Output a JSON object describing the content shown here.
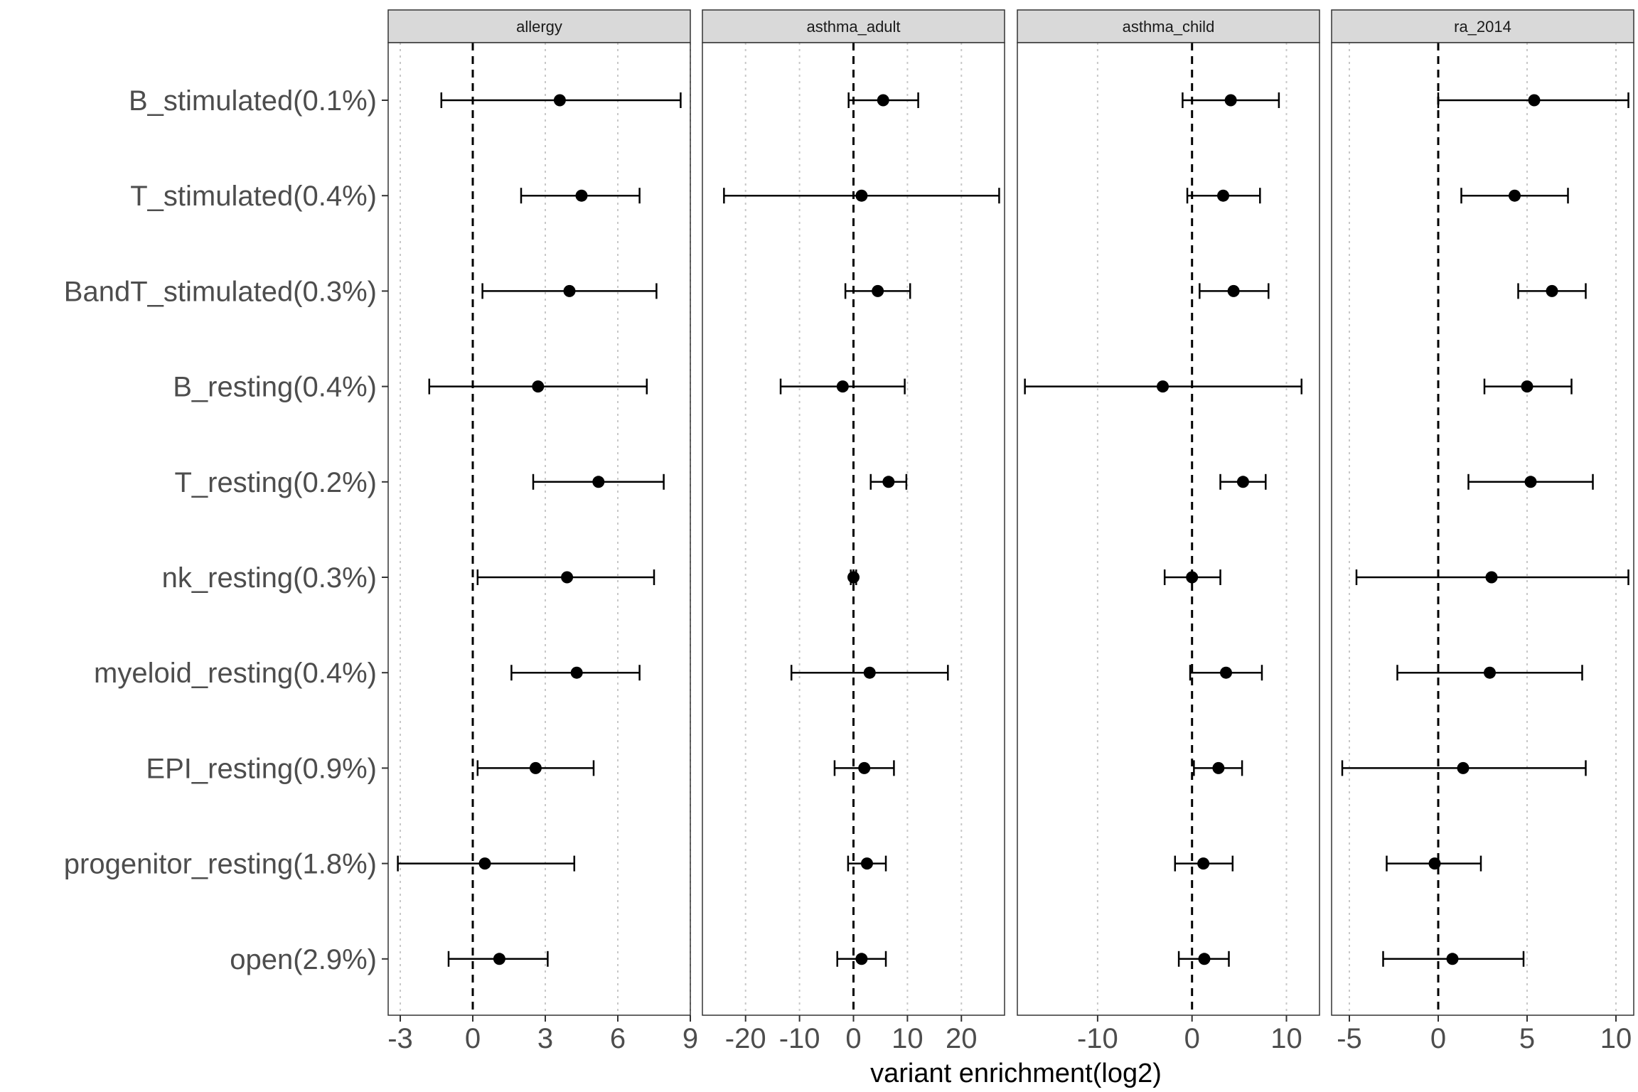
{
  "chart_data": {
    "type": "scatter",
    "style": "dot-and-whisker (point estimate with confidence interval), faceted",
    "xlabel": "variant enrichment(log2)",
    "ylabel": "",
    "grid": "vertical dotted grid lines only",
    "reference_line": {
      "x": 0,
      "style": "dashed"
    },
    "categories": [
      "B_stimulated(0.1%)",
      "T_stimulated(0.4%)",
      "BandT_stimulated(0.3%)",
      "B_resting(0.4%)",
      "T_resting(0.2%)",
      "nk_resting(0.3%)",
      "myeloid_resting(0.4%)",
      "EPI_resting(0.9%)",
      "progenitor_resting(1.8%)",
      "open(2.9%)"
    ],
    "facets": [
      {
        "name": "allergy",
        "xlim": [
          -3.5,
          9
        ],
        "ticks": [
          -3,
          0,
          3,
          6,
          9
        ],
        "tick_labels": [
          "-3",
          "0",
          "3",
          "6",
          "9"
        ],
        "points": [
          {
            "est": 3.6,
            "lo": -1.3,
            "hi": 8.6
          },
          {
            "est": 4.5,
            "lo": 2.0,
            "hi": 6.9
          },
          {
            "est": 4.0,
            "lo": 0.4,
            "hi": 7.6
          },
          {
            "est": 2.7,
            "lo": -1.8,
            "hi": 7.2
          },
          {
            "est": 5.2,
            "lo": 2.5,
            "hi": 7.9
          },
          {
            "est": 3.9,
            "lo": 0.2,
            "hi": 7.5
          },
          {
            "est": 4.3,
            "lo": 1.6,
            "hi": 6.9
          },
          {
            "est": 2.6,
            "lo": 0.2,
            "hi": 5.0
          },
          {
            "est": 0.5,
            "lo": -3.1,
            "hi": 4.2
          },
          {
            "est": 1.1,
            "lo": -1.0,
            "hi": 3.1
          }
        ]
      },
      {
        "name": "asthma_adult",
        "xlim": [
          -28,
          28
        ],
        "ticks": [
          -20,
          -10,
          0,
          10,
          20
        ],
        "tick_labels": [
          "-20",
          "-10",
          "0",
          "10",
          "20"
        ],
        "points": [
          {
            "est": 5.5,
            "lo": -0.9,
            "hi": 12.0
          },
          {
            "est": 1.5,
            "lo": -24.0,
            "hi": 27.0
          },
          {
            "est": 4.5,
            "lo": -1.5,
            "hi": 10.5
          },
          {
            "est": -2.0,
            "lo": -13.5,
            "hi": 9.5
          },
          {
            "est": 6.5,
            "lo": 3.2,
            "hi": 9.8
          },
          {
            "est": 0.0,
            "lo": -0.5,
            "hi": 0.5
          },
          {
            "est": 3.0,
            "lo": -11.5,
            "hi": 17.5
          },
          {
            "est": 2.0,
            "lo": -3.5,
            "hi": 7.5
          },
          {
            "est": 2.5,
            "lo": -1.0,
            "hi": 6.0
          },
          {
            "est": 1.5,
            "lo": -3.0,
            "hi": 6.0
          }
        ]
      },
      {
        "name": "asthma_child",
        "xlim": [
          -18.5,
          13.5
        ],
        "ticks": [
          -10,
          0,
          10
        ],
        "tick_labels": [
          "-10",
          "0",
          "10"
        ],
        "points": [
          {
            "est": 4.1,
            "lo": -1.0,
            "hi": 9.2
          },
          {
            "est": 3.3,
            "lo": -0.5,
            "hi": 7.2
          },
          {
            "est": 4.4,
            "lo": 0.8,
            "hi": 8.1
          },
          {
            "est": -3.1,
            "lo": -17.7,
            "hi": 11.6
          },
          {
            "est": 5.4,
            "lo": 3.0,
            "hi": 7.8
          },
          {
            "est": 0.0,
            "lo": -2.9,
            "hi": 3.0
          },
          {
            "est": 3.6,
            "lo": -0.2,
            "hi": 7.4
          },
          {
            "est": 2.8,
            "lo": 0.2,
            "hi": 5.3
          },
          {
            "est": 1.2,
            "lo": -1.8,
            "hi": 4.3
          },
          {
            "est": 1.3,
            "lo": -1.4,
            "hi": 3.9
          }
        ]
      },
      {
        "name": "ra_2014",
        "xlim": [
          -6,
          11
        ],
        "ticks": [
          -5,
          0,
          5,
          10
        ],
        "tick_labels": [
          "-5",
          "0",
          "5",
          "10"
        ],
        "points": [
          {
            "est": 5.4,
            "lo": 0.0,
            "hi": 10.7
          },
          {
            "est": 4.3,
            "lo": 1.3,
            "hi": 7.3
          },
          {
            "est": 6.4,
            "lo": 4.5,
            "hi": 8.3
          },
          {
            "est": 5.0,
            "lo": 2.6,
            "hi": 7.5
          },
          {
            "est": 5.2,
            "lo": 1.7,
            "hi": 8.7
          },
          {
            "est": 3.0,
            "lo": -4.6,
            "hi": 10.7
          },
          {
            "est": 2.9,
            "lo": -2.3,
            "hi": 8.1
          },
          {
            "est": 1.4,
            "lo": -5.4,
            "hi": 8.3
          },
          {
            "est": -0.2,
            "lo": -2.9,
            "hi": 2.4
          },
          {
            "est": 0.8,
            "lo": -3.1,
            "hi": 4.8
          }
        ]
      }
    ]
  }
}
